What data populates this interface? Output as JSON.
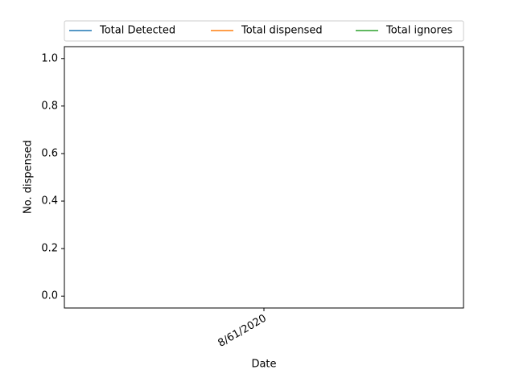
{
  "chart_data": {
    "type": "line",
    "xlabel": "Date",
    "ylabel": "No. dispensed",
    "categories": [
      "8/61/2020"
    ],
    "series": [
      {
        "name": "Total Detected",
        "color": "#1f77b4",
        "values": [
          null
        ]
      },
      {
        "name": "Total dispensed",
        "color": "#ff7f0e",
        "values": [
          null
        ]
      },
      {
        "name": "Total ignores",
        "color": "#2ca02c",
        "values": [
          null
        ]
      }
    ],
    "ylim": [
      -0.05,
      1.05
    ],
    "yticks": [
      {
        "value": 0,
        "label": "0.0"
      },
      {
        "value": 0.2,
        "label": "0.2"
      },
      {
        "value": 0.4,
        "label": "0.4"
      },
      {
        "value": 0.6,
        "label": "0.6"
      },
      {
        "value": 0.8,
        "label": "0.8"
      },
      {
        "value": 1,
        "label": "1.0"
      }
    ],
    "legend": "top"
  }
}
